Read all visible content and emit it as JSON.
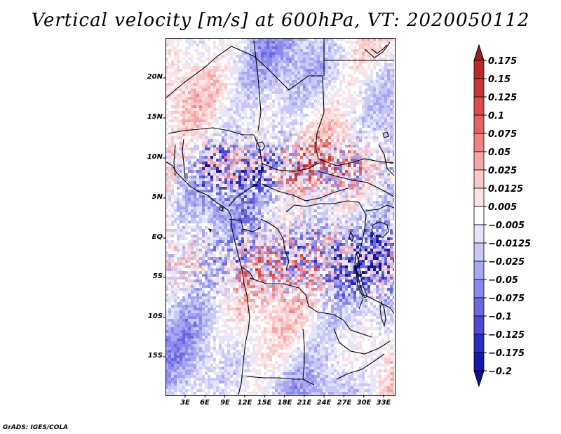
{
  "title": "Vertical velocity [m/s] at 600hPa, VT: 2020050112",
  "footer": "GrADS: IGES/COLA",
  "map": {
    "variable": "Vertical velocity",
    "units": "m/s",
    "level": "600hPa",
    "valid_time": "2020050112",
    "region": "Central Africa",
    "lat_labels": [
      "20N",
      "15N",
      "10N",
      "5N",
      "EQ",
      "5S",
      "10S",
      "15S"
    ],
    "lon_labels": [
      "3E",
      "6E",
      "9E",
      "12E",
      "15E",
      "18E",
      "21E",
      "24E",
      "27E",
      "30E",
      "33E"
    ],
    "lat_range": [
      -20,
      24
    ],
    "lon_range": [
      0,
      34.5
    ]
  },
  "colorbar": {
    "labels": [
      "0.175",
      "0.15",
      "0.125",
      "0.1",
      "0.075",
      "0.05",
      "0.025",
      "0.0125",
      "0.005",
      "−0.005",
      "−0.0125",
      "−0.025",
      "−0.05",
      "−0.075",
      "−0.1",
      "−0.125",
      "−0.175",
      "−0.2"
    ],
    "colors": [
      "#a01a1a",
      "#b82a2a",
      "#c83838",
      "#d84c4c",
      "#e46464",
      "#ee8282",
      "#f6a6a6",
      "#fac8c8",
      "#fde4e4",
      "#ffffff",
      "#e4e4fc",
      "#c8c8f8",
      "#a8a8f2",
      "#8a8aec",
      "#6a6ae0",
      "#4a4ad2",
      "#2c2cc0",
      "#1818a8",
      "#10108c"
    ]
  }
}
